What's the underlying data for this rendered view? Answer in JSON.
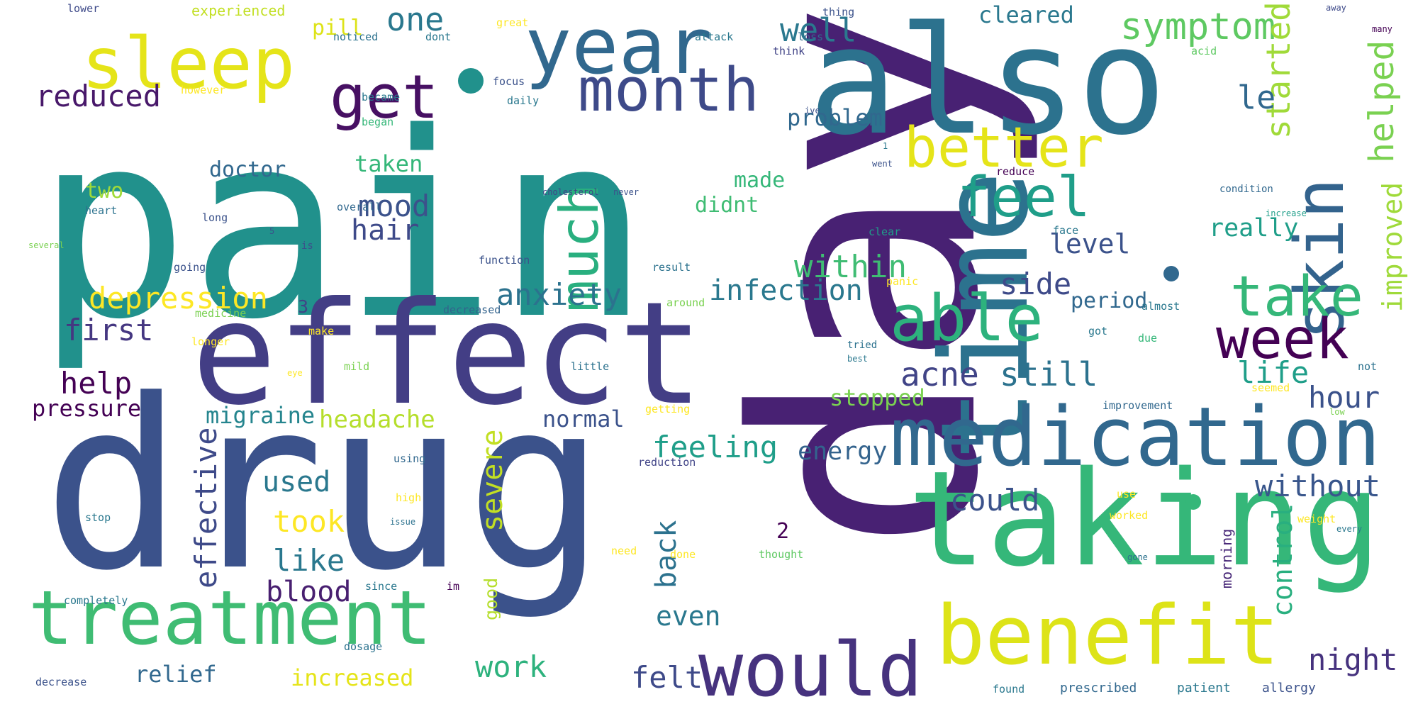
{
  "words": [
    {
      "text": "pain",
      "weight": 1.0,
      "color": "#21918c",
      "vertical": false
    },
    {
      "text": "day",
      "weight": 0.98,
      "color": "#482173",
      "vertical": true
    },
    {
      "text": "drug",
      "weight": 0.95,
      "color": "#3b528b",
      "vertical": false
    },
    {
      "text": "also",
      "weight": 0.55,
      "color": "#2c728e",
      "vertical": false
    },
    {
      "text": "effect",
      "weight": 0.6,
      "color": "#433e85",
      "vertical": false
    },
    {
      "text": "taking",
      "weight": 0.5,
      "color": "#35b779",
      "vertical": false
    },
    {
      "text": "time",
      "weight": 0.45,
      "color": "#2c728e",
      "vertical": true
    },
    {
      "text": "medication",
      "weight": 0.35,
      "color": "#31688e",
      "vertical": false
    },
    {
      "text": "benefit",
      "weight": 0.3,
      "color": "#dde318",
      "vertical": false
    },
    {
      "text": "treatment",
      "weight": 0.28,
      "color": "#3fbc73",
      "vertical": false
    },
    {
      "text": "would",
      "weight": 0.26,
      "color": "#46327e",
      "vertical": false
    },
    {
      "text": "sleep",
      "weight": 0.27,
      "color": "#e5e419",
      "vertical": false
    },
    {
      "text": "year",
      "weight": 0.25,
      "color": "#31688e",
      "vertical": false
    },
    {
      "text": "skin",
      "weight": 0.22,
      "color": "#33638d",
      "vertical": true
    },
    {
      "text": "able",
      "weight": 0.22,
      "color": "#2db27d",
      "vertical": false
    },
    {
      "text": "month",
      "weight": 0.19,
      "color": "#3e4a89",
      "vertical": false
    },
    {
      "text": "get",
      "weight": 0.19,
      "color": "#471063",
      "vertical": false
    },
    {
      "text": "much",
      "weight": 0.18,
      "color": "#29af7f",
      "vertical": true
    },
    {
      "text": "better",
      "weight": 0.17,
      "color": "#e5e419",
      "vertical": false
    },
    {
      "text": "feel",
      "weight": 0.17,
      "color": "#1f9e89",
      "vertical": false
    },
    {
      "text": "take",
      "weight": 0.17,
      "color": "#35b779",
      "vertical": false
    },
    {
      "text": "week",
      "weight": 0.16,
      "color": "#440154",
      "vertical": false
    },
    {
      "text": "symptom",
      "weight": 0.11,
      "color": "#5ec962",
      "vertical": false
    },
    {
      "text": "helped",
      "weight": 0.1,
      "color": "#7ad151",
      "vertical": true
    },
    {
      "text": "started",
      "weight": 0.09,
      "color": "#a0da39",
      "vertical": true
    },
    {
      "text": "improved",
      "weight": 0.07,
      "color": "#9fda3a",
      "vertical": true
    },
    {
      "text": "le",
      "weight": 0.09,
      "color": "#31688e",
      "vertical": false
    },
    {
      "text": "one",
      "weight": 0.09,
      "color": "#2a788e",
      "vertical": false
    },
    {
      "text": "well",
      "weight": 0.09,
      "color": "#2a788e",
      "vertical": false
    },
    {
      "text": "reduced",
      "weight": 0.09,
      "color": "#48186a",
      "vertical": false
    },
    {
      "text": "depression",
      "weight": 0.09,
      "color": "#fde725",
      "vertical": false
    },
    {
      "text": "anxiety",
      "weight": 0.08,
      "color": "#2c728e",
      "vertical": false
    },
    {
      "text": "within",
      "weight": 0.08,
      "color": "#3fbc73",
      "vertical": false
    },
    {
      "text": "infection",
      "weight": 0.08,
      "color": "#2a788e",
      "vertical": false
    },
    {
      "text": "acne",
      "weight": 0.08,
      "color": "#414487",
      "vertical": false
    },
    {
      "text": "still",
      "weight": 0.08,
      "color": "#2c728e",
      "vertical": false
    },
    {
      "text": "life",
      "weight": 0.08,
      "color": "#1f9e89",
      "vertical": false
    },
    {
      "text": "first",
      "weight": 0.08,
      "color": "#453781",
      "vertical": false
    },
    {
      "text": "help",
      "weight": 0.08,
      "color": "#440154",
      "vertical": false
    },
    {
      "text": "hour",
      "weight": 0.08,
      "color": "#3b528b",
      "vertical": false
    },
    {
      "text": "mood",
      "weight": 0.07,
      "color": "#3b528b",
      "vertical": false
    },
    {
      "text": "hair",
      "weight": 0.07,
      "color": "#3e4a89",
      "vertical": false
    },
    {
      "text": "side",
      "weight": 0.07,
      "color": "#3e4a89",
      "vertical": false
    },
    {
      "text": "level",
      "weight": 0.06,
      "color": "#3b528b",
      "vertical": false
    },
    {
      "text": "really",
      "weight": 0.06,
      "color": "#1f9e89",
      "vertical": false
    },
    {
      "text": "period",
      "weight": 0.05,
      "color": "#31688e",
      "vertical": false
    },
    {
      "text": "feeling",
      "weight": 0.08,
      "color": "#1f9e89",
      "vertical": false
    },
    {
      "text": "energy",
      "weight": 0.06,
      "color": "#33638d",
      "vertical": false
    },
    {
      "text": "without",
      "weight": 0.08,
      "color": "#39568c",
      "vertical": false
    },
    {
      "text": "could",
      "weight": 0.08,
      "color": "#3b528b",
      "vertical": false
    },
    {
      "text": "effective",
      "weight": 0.09,
      "color": "#3e4a89",
      "vertical": true
    },
    {
      "text": "severe",
      "weight": 0.07,
      "color": "#c2df23",
      "vertical": true
    },
    {
      "text": "back",
      "weight": 0.07,
      "color": "#2c728e",
      "vertical": true
    },
    {
      "text": "control",
      "weight": 0.07,
      "color": "#29af7f",
      "vertical": true
    },
    {
      "text": "took",
      "weight": 0.09,
      "color": "#fde725",
      "vertical": false
    },
    {
      "text": "used",
      "weight": 0.07,
      "color": "#2a788e",
      "vertical": false
    },
    {
      "text": "like",
      "weight": 0.08,
      "color": "#2a788e",
      "vertical": false
    },
    {
      "text": "blood",
      "weight": 0.08,
      "color": "#481f70",
      "vertical": false
    },
    {
      "text": "even",
      "weight": 0.06,
      "color": "#2a788e",
      "vertical": false
    },
    {
      "text": "work",
      "weight": 0.08,
      "color": "#2db27d",
      "vertical": false
    },
    {
      "text": "felt",
      "weight": 0.08,
      "color": "#3e4a89",
      "vertical": false
    },
    {
      "text": "night",
      "weight": 0.08,
      "color": "#46327e",
      "vertical": false
    },
    {
      "text": "relief",
      "weight": 0.06,
      "color": "#31688e",
      "vertical": false
    },
    {
      "text": "increased",
      "weight": 0.06,
      "color": "#e5e419",
      "vertical": false
    },
    {
      "text": "pressure",
      "weight": 0.07,
      "color": "#440154",
      "vertical": false
    },
    {
      "text": "migraine",
      "weight": 0.06,
      "color": "#25858e",
      "vertical": false
    },
    {
      "text": "headache",
      "weight": 0.07,
      "color": "#b5de2b",
      "vertical": false
    },
    {
      "text": "normal",
      "weight": 0.06,
      "color": "#3b528b",
      "vertical": false
    },
    {
      "text": "stopped",
      "weight": 0.07,
      "color": "#7ad151",
      "vertical": false
    },
    {
      "text": "doctor",
      "weight": 0.06,
      "color": "#31688e",
      "vertical": false
    },
    {
      "text": "taken",
      "weight": 0.06,
      "color": "#35b779",
      "vertical": false
    },
    {
      "text": "made",
      "weight": 0.06,
      "color": "#35b779",
      "vertical": false
    },
    {
      "text": "didnt",
      "weight": 0.05,
      "color": "#3fbc73",
      "vertical": false
    },
    {
      "text": "problem",
      "weight": 0.06,
      "color": "#31688e",
      "vertical": false
    },
    {
      "text": "cleared",
      "weight": 0.06,
      "color": "#2a788e",
      "vertical": false
    },
    {
      "text": "two",
      "weight": 0.05,
      "color": "#a0da39",
      "vertical": false
    },
    {
      "text": "pill",
      "weight": 0.06,
      "color": "#dde318",
      "vertical": false
    },
    {
      "text": "3",
      "weight": 0.05,
      "color": "#414487",
      "vertical": false
    },
    {
      "text": "2",
      "weight": 0.06,
      "color": "#440154",
      "vertical": false
    },
    {
      "text": "good",
      "weight": 0.04,
      "color": "#b5de2b",
      "vertical": true
    },
    {
      "text": "morning",
      "weight": 0.03,
      "color": "#482878",
      "vertical": true
    },
    {
      "text": "experienced",
      "weight": 0.03,
      "color": "#c2df23",
      "vertical": false
    },
    {
      "text": "lower",
      "weight": 0.03,
      "color": "#3e4a89",
      "vertical": false
    },
    {
      "text": "noticed",
      "weight": 0.03,
      "color": "#2c728e",
      "vertical": false
    },
    {
      "text": "dont",
      "weight": 0.03,
      "color": "#2a788e",
      "vertical": false
    },
    {
      "text": "great",
      "weight": 0.03,
      "color": "#fde725",
      "vertical": false
    },
    {
      "text": "thing",
      "weight": 0.03,
      "color": "#3b528b",
      "vertical": false
    },
    {
      "text": "loss",
      "weight": 0.03,
      "color": "#31688e",
      "vertical": false
    },
    {
      "text": "attack",
      "weight": 0.03,
      "color": "#2a788e",
      "vertical": false
    },
    {
      "text": "think",
      "weight": 0.03,
      "color": "#414487",
      "vertical": false
    },
    {
      "text": "away",
      "weight": 0.02,
      "color": "#3e4a89",
      "vertical": false
    },
    {
      "text": "many",
      "weight": 0.02,
      "color": "#440154",
      "vertical": false
    },
    {
      "text": "acid",
      "weight": 0.02,
      "color": "#5ec962",
      "vertical": false
    },
    {
      "text": "focus",
      "weight": 0.03,
      "color": "#3b528b",
      "vertical": false
    },
    {
      "text": "however",
      "weight": 0.03,
      "color": "#fde725",
      "vertical": false
    },
    {
      "text": "became",
      "weight": 0.03,
      "color": "#2a788e",
      "vertical": false
    },
    {
      "text": "daily",
      "weight": 0.03,
      "color": "#2a788e",
      "vertical": false
    },
    {
      "text": "began",
      "weight": 0.03,
      "color": "#35b779",
      "vertical": false
    },
    {
      "text": "overall",
      "weight": 0.03,
      "color": "#31688e",
      "vertical": false
    },
    {
      "text": "long",
      "weight": 0.03,
      "color": "#3b528b",
      "vertical": false
    },
    {
      "text": "heart",
      "weight": 0.03,
      "color": "#2c728e",
      "vertical": false
    },
    {
      "text": "medicine",
      "weight": 0.03,
      "color": "#7ad151",
      "vertical": false
    },
    {
      "text": "longer",
      "weight": 0.03,
      "color": "#fde725",
      "vertical": false
    },
    {
      "text": "going",
      "weight": 0.03,
      "color": "#3b528b",
      "vertical": false
    },
    {
      "text": "several",
      "weight": 0.02,
      "color": "#7ad151",
      "vertical": false
    },
    {
      "text": "decreased",
      "weight": 0.03,
      "color": "#33638d",
      "vertical": false
    },
    {
      "text": "make",
      "weight": 0.03,
      "color": "#fde725",
      "vertical": false
    },
    {
      "text": "mild",
      "weight": 0.03,
      "color": "#7ad151",
      "vertical": false
    },
    {
      "text": "around",
      "weight": 0.03,
      "color": "#7ad151",
      "vertical": false
    },
    {
      "text": "little",
      "weight": 0.03,
      "color": "#2c728e",
      "vertical": false
    },
    {
      "text": "getting",
      "weight": 0.03,
      "color": "#fde725",
      "vertical": false
    },
    {
      "text": "reduction",
      "weight": 0.03,
      "color": "#414487",
      "vertical": false
    },
    {
      "text": "clear",
      "weight": 0.03,
      "color": "#1f9e89",
      "vertical": false
    },
    {
      "text": "almost",
      "weight": 0.02,
      "color": "#2a788e",
      "vertical": false
    },
    {
      "text": "due",
      "weight": 0.02,
      "color": "#35b779",
      "vertical": false
    },
    {
      "text": "got",
      "weight": 0.02,
      "color": "#2a788e",
      "vertical": false
    },
    {
      "text": "face",
      "weight": 0.02,
      "color": "#2a788e",
      "vertical": false
    },
    {
      "text": "panic",
      "weight": 0.03,
      "color": "#fde725",
      "vertical": false
    },
    {
      "text": "reduce",
      "weight": 0.02,
      "color": "#440154",
      "vertical": false
    },
    {
      "text": "condition",
      "weight": 0.02,
      "color": "#31688e",
      "vertical": false
    },
    {
      "text": "increase",
      "weight": 0.02,
      "color": "#1f9e89",
      "vertical": false
    },
    {
      "text": "never",
      "weight": 0.02,
      "color": "#3b528b",
      "vertical": false
    },
    {
      "text": "cholesterol",
      "weight": 0.02,
      "color": "#414487",
      "vertical": false
    },
    {
      "text": "function",
      "weight": 0.03,
      "color": "#3b528b",
      "vertical": false
    },
    {
      "text": "result",
      "weight": 0.03,
      "color": "#2c728e",
      "vertical": false
    },
    {
      "text": "improvement",
      "weight": 0.03,
      "color": "#31688e",
      "vertical": false
    },
    {
      "text": "seemed",
      "weight": 0.02,
      "color": "#fde725",
      "vertical": false
    },
    {
      "text": "not",
      "weight": 0.02,
      "color": "#2c728e",
      "vertical": false
    },
    {
      "text": "using",
      "weight": 0.03,
      "color": "#31688e",
      "vertical": false
    },
    {
      "text": "high",
      "weight": 0.03,
      "color": "#fde725",
      "vertical": false
    },
    {
      "text": "issue",
      "weight": 0.02,
      "color": "#2c728e",
      "vertical": false
    },
    {
      "text": "stop",
      "weight": 0.02,
      "color": "#2a788e",
      "vertical": false
    },
    {
      "text": "need",
      "weight": 0.03,
      "color": "#fde725",
      "vertical": false
    },
    {
      "text": "done",
      "weight": 0.03,
      "color": "#fde725",
      "vertical": false
    },
    {
      "text": "thought",
      "weight": 0.03,
      "color": "#5ec962",
      "vertical": false
    },
    {
      "text": "completely",
      "weight": 0.03,
      "color": "#2a788e",
      "vertical": false
    },
    {
      "text": "since",
      "weight": 0.03,
      "color": "#2a788e",
      "vertical": false
    },
    {
      "text": "im",
      "weight": 0.03,
      "color": "#440154",
      "vertical": false
    },
    {
      "text": "use",
      "weight": 0.02,
      "color": "#fde725",
      "vertical": false
    },
    {
      "text": "worked",
      "weight": 0.03,
      "color": "#fde725",
      "vertical": false
    },
    {
      "text": "weight",
      "weight": 0.03,
      "color": "#fde725",
      "vertical": false
    },
    {
      "text": "every",
      "weight": 0.02,
      "color": "#2a788e",
      "vertical": false
    },
    {
      "text": "gone",
      "weight": 0.02,
      "color": "#2c728e",
      "vertical": false
    },
    {
      "text": "decrease",
      "weight": 0.03,
      "color": "#3b528b",
      "vertical": false
    },
    {
      "text": "dosage",
      "weight": 0.03,
      "color": "#2c728e",
      "vertical": false
    },
    {
      "text": "found",
      "weight": 0.03,
      "color": "#2a788e",
      "vertical": false
    },
    {
      "text": "prescribed",
      "weight": 0.03,
      "color": "#31688e",
      "vertical": false
    },
    {
      "text": "patient",
      "weight": 0.03,
      "color": "#2a788e",
      "vertical": false
    },
    {
      "text": "allergy",
      "weight": 0.03,
      "color": "#3b528b",
      "vertical": false
    },
    {
      "text": "went",
      "weight": 0.02,
      "color": "#3b528b",
      "vertical": false
    },
    {
      "text": "eye",
      "weight": 0.02,
      "color": "#fde725",
      "vertical": false
    },
    {
      "text": "tried",
      "weight": 0.02,
      "color": "#2c728e",
      "vertical": false
    },
    {
      "text": "best",
      "weight": 0.02,
      "color": "#2a788e",
      "vertical": false
    },
    {
      "text": "ive",
      "weight": 0.02,
      "color": "#3b528b",
      "vertical": false
    },
    {
      "text": "low",
      "weight": 0.02,
      "color": "#7ad151",
      "vertical": false
    },
    {
      "text": "is",
      "weight": 0.02,
      "color": "#3b528b",
      "vertical": false
    },
    {
      "text": "1",
      "weight": 0.02,
      "color": "#2a788e",
      "vertical": false
    },
    {
      "text": "5",
      "weight": 0.02,
      "color": "#3b528b",
      "vertical": false
    }
  ]
}
